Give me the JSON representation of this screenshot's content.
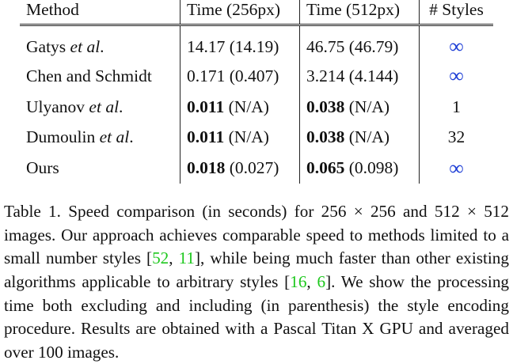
{
  "table": {
    "headers": {
      "method": "Method",
      "time256": "Time (256px)",
      "time512": "Time (512px)",
      "styles": "# Styles"
    },
    "rows": [
      {
        "method": "Gatys",
        "method_suffix": "et al",
        "method_end": ".",
        "t256_main": "14.17",
        "t256_paren": "(14.19)",
        "t512_main": "46.75",
        "t512_paren": "(46.79)",
        "styles": "∞"
      },
      {
        "method": "Chen and Schmidt",
        "method_suffix": "",
        "method_end": "",
        "t256_main": "0.171",
        "t256_paren": "(0.407)",
        "t512_main": "3.214",
        "t512_paren": "(4.144)",
        "styles": "∞"
      },
      {
        "method": "Ulyanov",
        "method_suffix": "et al",
        "method_end": ".",
        "t256_main": "0.011",
        "t256_paren": "(N/A)",
        "t512_main": "0.038",
        "t512_paren": "(N/A)",
        "styles": "1"
      },
      {
        "method": "Dumoulin",
        "method_suffix": "et al",
        "method_end": ".",
        "t256_main": "0.011",
        "t256_paren": "(N/A)",
        "t512_main": "0.038",
        "t512_paren": "(N/A)",
        "styles": "32"
      },
      {
        "method": "Ours",
        "method_suffix": "",
        "method_end": "",
        "t256_main": "0.018",
        "t256_paren": "(0.027)",
        "t512_main": "0.065",
        "t512_paren": "(0.098)",
        "styles": "∞"
      }
    ]
  },
  "caption": {
    "part1": "Table 1. Speed comparison (in seconds) for 256 × 256 and 512 × 512 images. Our approach achieves comparable speed to methods limited to a small number styles [",
    "cite1": "52",
    "sep1": ", ",
    "cite2": "11",
    "part2": "], while being much faster than other existing algorithms applicable to arbitrary styles [",
    "cite3": "16",
    "sep2": ", ",
    "cite4": "6",
    "part3": "]. We show the processing time both excluding and including (in parenthesis) the style encoding procedure. Results are obtained with a Pascal Titan X GPU and averaged over 100 images."
  },
  "colors": {
    "infinity": "#1e3fd6",
    "citation": "#1ec81e"
  }
}
